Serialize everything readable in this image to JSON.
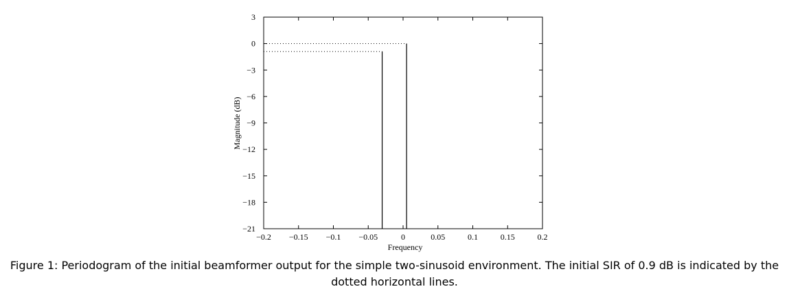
{
  "chart_data": {
    "type": "stem",
    "xlabel": "Frequency",
    "ylabel": "Magnitude (dB)",
    "series": [
      {
        "name": "Periodogram",
        "color": "#000000",
        "x": [
          -0.03,
          0.005
        ],
        "values": [
          -0.9,
          0
        ]
      }
    ],
    "xlim": [
      -0.2,
      0.2
    ],
    "xticks": [
      {
        "value": -0.2,
        "label": "−0.2"
      },
      {
        "value": -0.15,
        "label": "−0.15"
      },
      {
        "value": -0.1,
        "label": "−0.1"
      },
      {
        "value": -0.05,
        "label": "−0.05"
      },
      0,
      0.05,
      0.1,
      0.15,
      0.2
    ],
    "ylim": [
      -21,
      3
    ],
    "yticks": [
      {
        "value": -21,
        "label": "−21"
      },
      {
        "value": -18,
        "label": "−18"
      },
      {
        "value": -15,
        "label": "−15"
      },
      {
        "value": -12,
        "label": "−12"
      },
      {
        "value": -9,
        "label": "−9"
      },
      {
        "value": -6,
        "label": "−6"
      },
      {
        "value": -3,
        "label": "−3"
      },
      0,
      3
    ],
    "dotted_reference_lines": true
  },
  "caption": "Figure 1: Periodogram of the initial beamformer output for the simple two-sinusoid environment. The initial SIR of 0.9 dB is indicated by the dotted horizontal lines."
}
